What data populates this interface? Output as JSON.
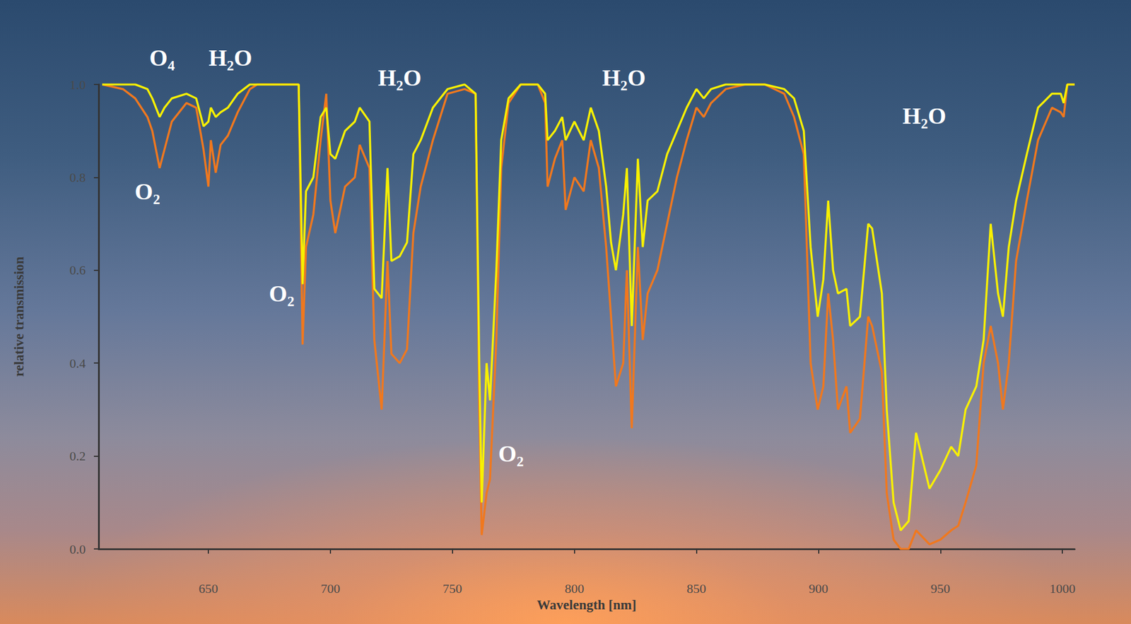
{
  "chart_data": {
    "type": "line",
    "x_label": "Wavelength [nm]",
    "y_label": "relative transmission",
    "xlim": [
      605,
      1005
    ],
    "ylim": [
      0,
      1
    ],
    "xticks": [
      650,
      700,
      750,
      800,
      850,
      900,
      950,
      1000
    ],
    "yticks": [
      {
        "value": 0,
        "label": "0.0"
      },
      0.2,
      0.4,
      0.6,
      0.8,
      {
        "value": 1,
        "label": "1.0"
      }
    ],
    "grid": false,
    "x": [
      606.5,
      615,
      620,
      625,
      627,
      630,
      632,
      635,
      641,
      645,
      648,
      650,
      651,
      653,
      655,
      658,
      662,
      667,
      670,
      687,
      688.6,
      690,
      693,
      696,
      698.3,
      700,
      702,
      706,
      710,
      712,
      716,
      718,
      721,
      723.4,
      725,
      728.4,
      731.4,
      734,
      737,
      742,
      748,
      755,
      759.5,
      761,
      762,
      764,
      765.4,
      768,
      770,
      773,
      778,
      785,
      788,
      789,
      792,
      795,
      796.4,
      800,
      803.8,
      806.7,
      810,
      813,
      815,
      817,
      820,
      821.5,
      823.5,
      826,
      828,
      830,
      834,
      838,
      842,
      846,
      850,
      853,
      856,
      862,
      870,
      878,
      886,
      890,
      894,
      896.8,
      899.7,
      902,
      904,
      906,
      908,
      911.5,
      913,
      917,
      920.4,
      922,
      926,
      928,
      930.8,
      933.7,
      937,
      940,
      945.5,
      950,
      954.4,
      957.3,
      960.3,
      964.7,
      967.7,
      970.6,
      973.6,
      975.6,
      978,
      981,
      985.4,
      990,
      995.7,
      999.3,
      1000.5,
      1002,
      1005
    ],
    "series": [
      {
        "color": "#f0781e",
        "values": [
          1.0,
          0.99,
          0.97,
          0.93,
          0.9,
          0.82,
          0.86,
          0.92,
          0.96,
          0.95,
          0.86,
          0.78,
          0.88,
          0.81,
          0.87,
          0.89,
          0.94,
          0.99,
          1.0,
          1.0,
          0.44,
          0.65,
          0.72,
          0.88,
          0.98,
          0.75,
          0.68,
          0.78,
          0.8,
          0.87,
          0.82,
          0.45,
          0.3,
          0.62,
          0.42,
          0.4,
          0.43,
          0.68,
          0.78,
          0.88,
          0.98,
          0.99,
          0.98,
          0.3,
          0.03,
          0.12,
          0.15,
          0.45,
          0.82,
          0.96,
          1.0,
          1.0,
          0.96,
          0.78,
          0.84,
          0.88,
          0.73,
          0.8,
          0.77,
          0.88,
          0.82,
          0.65,
          0.5,
          0.35,
          0.4,
          0.6,
          0.26,
          0.65,
          0.45,
          0.55,
          0.6,
          0.7,
          0.8,
          0.88,
          0.95,
          0.93,
          0.96,
          0.99,
          1.0,
          1.0,
          0.98,
          0.93,
          0.85,
          0.4,
          0.3,
          0.35,
          0.55,
          0.45,
          0.3,
          0.35,
          0.25,
          0.28,
          0.5,
          0.48,
          0.38,
          0.12,
          0.02,
          0.0,
          0.0,
          0.04,
          0.01,
          0.02,
          0.04,
          0.05,
          0.1,
          0.18,
          0.4,
          0.48,
          0.4,
          0.3,
          0.4,
          0.62,
          0.75,
          0.88,
          0.95,
          0.94,
          0.93,
          1.0,
          1.0
        ]
      },
      {
        "color": "#f8f000",
        "values": [
          1.0,
          1.0,
          1.0,
          0.99,
          0.97,
          0.93,
          0.95,
          0.97,
          0.98,
          0.97,
          0.91,
          0.92,
          0.95,
          0.93,
          0.94,
          0.95,
          0.98,
          1.0,
          1.0,
          1.0,
          0.57,
          0.77,
          0.8,
          0.93,
          0.95,
          0.85,
          0.84,
          0.9,
          0.92,
          0.95,
          0.92,
          0.56,
          0.54,
          0.82,
          0.62,
          0.63,
          0.66,
          0.85,
          0.88,
          0.95,
          0.99,
          1.0,
          0.98,
          0.4,
          0.1,
          0.4,
          0.32,
          0.6,
          0.88,
          0.97,
          1.0,
          1.0,
          0.98,
          0.88,
          0.9,
          0.93,
          0.88,
          0.92,
          0.88,
          0.95,
          0.9,
          0.78,
          0.66,
          0.6,
          0.72,
          0.82,
          0.48,
          0.84,
          0.65,
          0.75,
          0.77,
          0.85,
          0.9,
          0.95,
          0.99,
          0.97,
          0.99,
          1.0,
          1.0,
          1.0,
          0.99,
          0.97,
          0.9,
          0.65,
          0.5,
          0.58,
          0.75,
          0.6,
          0.55,
          0.56,
          0.48,
          0.5,
          0.7,
          0.69,
          0.55,
          0.3,
          0.1,
          0.04,
          0.06,
          0.25,
          0.13,
          0.17,
          0.22,
          0.2,
          0.3,
          0.35,
          0.45,
          0.7,
          0.55,
          0.5,
          0.65,
          0.75,
          0.85,
          0.95,
          0.98,
          0.98,
          0.96,
          1.0,
          1.0
        ]
      }
    ],
    "annotations": [
      {
        "text": "O₄",
        "x": 631,
        "y": 1.057
      },
      {
        "text": "H₂O",
        "x": 659,
        "y": 1.057
      },
      {
        "text": "O₂",
        "x": 625,
        "y": 0.77
      },
      {
        "text": "H₂O",
        "x": 728.4,
        "y": 1.015
      },
      {
        "text": "O₂",
        "x": 680,
        "y": 0.55
      },
      {
        "text": "O₂",
        "x": 774,
        "y": 0.205
      },
      {
        "text": "H₂O",
        "x": 820.3,
        "y": 1.015
      },
      {
        "text": "H₂O",
        "x": 943.4,
        "y": 0.933
      }
    ]
  }
}
